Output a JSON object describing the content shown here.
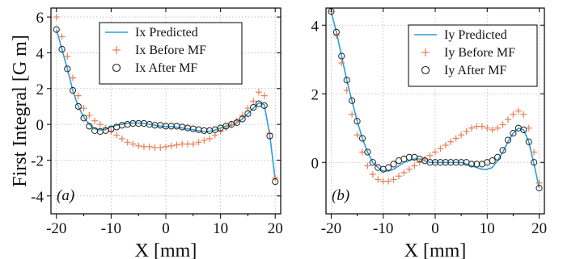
{
  "chart_data": [
    {
      "type": "line",
      "panel_tag": "(a)",
      "ylabel": "First Integral [G m]",
      "xlabel": "X [mm]",
      "xlim": [
        -21,
        21
      ],
      "ylim": [
        -5,
        6.5
      ],
      "xticks": [
        -20,
        -10,
        0,
        10,
        20
      ],
      "yticks": [
        -4,
        -2,
        0,
        2,
        4,
        6
      ],
      "xtick_labels": [
        "-20",
        "-10",
        "0",
        "10",
        "20"
      ],
      "ytick_labels": [
        "-4",
        "-2",
        "0",
        "2",
        "4",
        "6"
      ],
      "grid": true,
      "legend_position": "top-right",
      "series": [
        {
          "name": "Ix Predicted",
          "marker": "line",
          "color": "#2a9fd6",
          "x": [
            -20,
            -19,
            -18,
            -17,
            -16,
            -15,
            -14,
            -13,
            -12,
            -11,
            -10,
            -9,
            -8,
            -7,
            -6,
            -5,
            -4,
            -3,
            -2,
            -1,
            0,
            1,
            2,
            3,
            4,
            5,
            6,
            7,
            8,
            9,
            10,
            11,
            12,
            13,
            14,
            15,
            16,
            17,
            18,
            19,
            20
          ],
          "y": [
            5.3,
            4.2,
            3.1,
            1.9,
            1.0,
            0.4,
            0.0,
            -0.25,
            -0.32,
            -0.28,
            -0.15,
            -0.05,
            0.0,
            0.05,
            0.08,
            0.08,
            0.05,
            0.0,
            -0.05,
            -0.1,
            -0.12,
            -0.12,
            -0.15,
            -0.2,
            -0.25,
            -0.3,
            -0.35,
            -0.4,
            -0.38,
            -0.32,
            -0.2,
            -0.1,
            -0.05,
            0.1,
            0.3,
            0.6,
            0.9,
            1.2,
            1.1,
            -0.6,
            -3.1
          ]
        },
        {
          "name": "Ix Before MF",
          "marker": "plus",
          "color": "#e8805a",
          "x": [
            -20,
            -19,
            -18,
            -17,
            -16,
            -15,
            -14,
            -13,
            -12,
            -11,
            -10,
            -9,
            -8,
            -7,
            -6,
            -5,
            -4,
            -3,
            -2,
            -1,
            0,
            1,
            2,
            3,
            4,
            5,
            6,
            7,
            8,
            9,
            10,
            11,
            12,
            13,
            14,
            15,
            16,
            17,
            18,
            19,
            20
          ],
          "y": [
            6.0,
            4.9,
            3.8,
            2.6,
            1.6,
            0.9,
            0.5,
            0.2,
            0.0,
            -0.2,
            -0.4,
            -0.6,
            -0.8,
            -1.0,
            -1.1,
            -1.2,
            -1.25,
            -1.25,
            -1.3,
            -1.3,
            -1.25,
            -1.2,
            -1.15,
            -1.1,
            -1.1,
            -1.1,
            -1.0,
            -0.9,
            -0.8,
            -0.6,
            -0.4,
            -0.2,
            0.0,
            0.2,
            0.5,
            0.9,
            1.3,
            1.8,
            1.6,
            -0.5,
            -3.0
          ]
        },
        {
          "name": "Ix After MF",
          "marker": "circle",
          "color": "#222222",
          "x": [
            -20,
            -19,
            -18,
            -17,
            -16,
            -15,
            -14,
            -13,
            -12,
            -11,
            -10,
            -9,
            -8,
            -7,
            -6,
            -5,
            -4,
            -3,
            -2,
            -1,
            0,
            1,
            2,
            3,
            4,
            5,
            6,
            7,
            8,
            9,
            10,
            11,
            12,
            13,
            14,
            15,
            16,
            17,
            18,
            19,
            20
          ],
          "y": [
            5.3,
            4.2,
            3.1,
            1.9,
            1.0,
            0.35,
            -0.1,
            -0.35,
            -0.4,
            -0.35,
            -0.25,
            -0.15,
            -0.05,
            0.0,
            0.05,
            0.05,
            0.05,
            0.0,
            -0.05,
            -0.05,
            -0.1,
            -0.1,
            -0.1,
            -0.15,
            -0.2,
            -0.25,
            -0.3,
            -0.35,
            -0.35,
            -0.3,
            -0.2,
            -0.1,
            0.0,
            0.1,
            0.3,
            0.6,
            0.95,
            1.15,
            1.05,
            -0.65,
            -3.2
          ]
        }
      ]
    },
    {
      "type": "line",
      "panel_tag": "(b)",
      "ylabel": "",
      "xlabel": "X [mm]",
      "xlim": [
        -21,
        21
      ],
      "ylim": [
        -1.5,
        4.5
      ],
      "xticks": [
        -20,
        -10,
        0,
        10,
        20
      ],
      "yticks": [
        0,
        2,
        4
      ],
      "xtick_labels": [
        "-20",
        "-10",
        "0",
        "10",
        "20"
      ],
      "ytick_labels": [
        "0",
        "2",
        "4"
      ],
      "grid": true,
      "legend_position": "top-right",
      "series": [
        {
          "name": "Iy Predicted",
          "marker": "line",
          "color": "#2a9fd6",
          "x": [
            -20,
            -19,
            -18,
            -17,
            -16,
            -15,
            -14,
            -13,
            -12,
            -11,
            -10,
            -9,
            -8,
            -7,
            -6,
            -5,
            -4,
            -3,
            -2,
            -1,
            0,
            1,
            2,
            3,
            4,
            5,
            6,
            7,
            8,
            9,
            10,
            11,
            12,
            13,
            14,
            15,
            16,
            17,
            18,
            19,
            20
          ],
          "y": [
            4.4,
            3.8,
            3.1,
            2.4,
            1.8,
            1.2,
            0.7,
            0.3,
            0.0,
            -0.15,
            -0.25,
            -0.25,
            -0.2,
            -0.1,
            0.0,
            0.05,
            0.1,
            0.1,
            0.05,
            0.0,
            0.0,
            0.0,
            0.0,
            0.0,
            0.0,
            0.0,
            -0.05,
            -0.1,
            -0.15,
            -0.2,
            -0.2,
            -0.15,
            0.05,
            0.3,
            0.6,
            0.85,
            1.0,
            0.95,
            0.6,
            -0.05,
            -0.75
          ]
        },
        {
          "name": "Iy Before MF",
          "marker": "plus",
          "color": "#e8805a",
          "x": [
            -20,
            -19,
            -18,
            -17,
            -16,
            -15,
            -14,
            -13,
            -12,
            -11,
            -10,
            -9,
            -8,
            -7,
            -6,
            -5,
            -4,
            -3,
            -2,
            -1,
            0,
            1,
            2,
            3,
            4,
            5,
            6,
            7,
            8,
            9,
            10,
            11,
            12,
            13,
            14,
            15,
            16,
            17,
            18,
            19,
            20
          ],
          "y": [
            4.4,
            3.7,
            2.9,
            2.1,
            1.4,
            0.8,
            0.3,
            -0.1,
            -0.35,
            -0.5,
            -0.55,
            -0.55,
            -0.5,
            -0.4,
            -0.3,
            -0.2,
            -0.1,
            0.0,
            0.1,
            0.2,
            0.3,
            0.4,
            0.5,
            0.6,
            0.7,
            0.8,
            0.9,
            1.0,
            1.05,
            1.05,
            1.0,
            0.95,
            1.0,
            1.1,
            1.25,
            1.4,
            1.5,
            1.4,
            1.0,
            0.3,
            -0.6
          ]
        },
        {
          "name": "Iy After MF",
          "marker": "circle",
          "color": "#222222",
          "x": [
            -20,
            -19,
            -18,
            -17,
            -16,
            -15,
            -14,
            -13,
            -12,
            -11,
            -10,
            -9,
            -8,
            -7,
            -6,
            -5,
            -4,
            -3,
            -2,
            -1,
            0,
            1,
            2,
            3,
            4,
            5,
            6,
            7,
            8,
            9,
            10,
            11,
            12,
            13,
            14,
            15,
            16,
            17,
            18,
            19,
            20
          ],
          "y": [
            4.4,
            3.8,
            3.1,
            2.4,
            1.8,
            1.2,
            0.7,
            0.3,
            0.0,
            -0.15,
            -0.2,
            -0.15,
            -0.05,
            0.05,
            0.1,
            0.15,
            0.15,
            0.1,
            0.05,
            0.0,
            0.0,
            0.0,
            0.0,
            0.0,
            0.0,
            0.0,
            0.0,
            -0.05,
            -0.05,
            -0.05,
            0.0,
            0.05,
            0.15,
            0.35,
            0.65,
            0.85,
            1.0,
            0.95,
            0.6,
            0.0,
            -0.75
          ]
        }
      ]
    }
  ]
}
